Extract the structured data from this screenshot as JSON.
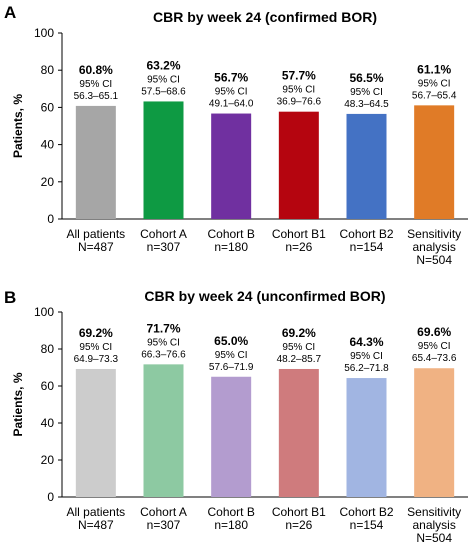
{
  "chart_data": [
    {
      "type": "bar",
      "panel": "A",
      "title": "CBR by week 24 (confirmed BOR)",
      "ylabel": "Patients, %",
      "xlabel": "",
      "ylim": [
        0,
        100
      ],
      "yticks": [
        0,
        20,
        40,
        60,
        80,
        100
      ],
      "grid": false,
      "categories": [
        [
          "All patients",
          "N=487"
        ],
        [
          "Cohort A",
          "n=307"
        ],
        [
          "Cohort B",
          "n=180"
        ],
        [
          "Cohort B1",
          "n=26"
        ],
        [
          "Cohort B2",
          "n=154"
        ],
        [
          "Sensitivity",
          "analysis",
          "N=504"
        ]
      ],
      "values": [
        60.8,
        63.2,
        56.7,
        57.7,
        56.5,
        61.1
      ],
      "value_labels": [
        "60.8%",
        "63.2%",
        "56.7%",
        "57.7%",
        "56.5%",
        "61.1%"
      ],
      "ci_label": "95% CI",
      "ci_ranges": [
        "56.3–65.1",
        "57.5–68.6",
        "49.1–64.0",
        "36.9–76.6",
        "48.3–64.5",
        "56.7–65.4"
      ],
      "colors": [
        "#a6a6a6",
        "#0e9a43",
        "#7030a0",
        "#b5050f",
        "#4472c4",
        "#e07b27"
      ]
    },
    {
      "type": "bar",
      "panel": "B",
      "title": "CBR by week 24 (unconfirmed BOR)",
      "ylabel": "Patients, %",
      "xlabel": "",
      "ylim": [
        0,
        100
      ],
      "yticks": [
        0,
        20,
        40,
        60,
        80,
        100
      ],
      "grid": false,
      "categories": [
        [
          "All patients",
          "N=487"
        ],
        [
          "Cohort A",
          "n=307"
        ],
        [
          "Cohort B",
          "n=180"
        ],
        [
          "Cohort B1",
          "n=26"
        ],
        [
          "Cohort B2",
          "n=154"
        ],
        [
          "Sensitivity",
          "analysis",
          "N=504"
        ]
      ],
      "values": [
        69.2,
        71.7,
        65.0,
        69.2,
        64.3,
        69.6
      ],
      "value_labels": [
        "69.2%",
        "71.7%",
        "65.0%",
        "69.2%",
        "64.3%",
        "69.6%"
      ],
      "ci_label": "95% CI",
      "ci_ranges": [
        "64.9–73.3",
        "66.3–76.6",
        "57.6–71.9",
        "48.2–85.7",
        "56.2–71.8",
        "65.4–73.6"
      ],
      "colors": [
        "#cccccc",
        "#8dc9a2",
        "#b39ccf",
        "#cf7b7d",
        "#a1b5e2",
        "#f0b283"
      ]
    }
  ]
}
